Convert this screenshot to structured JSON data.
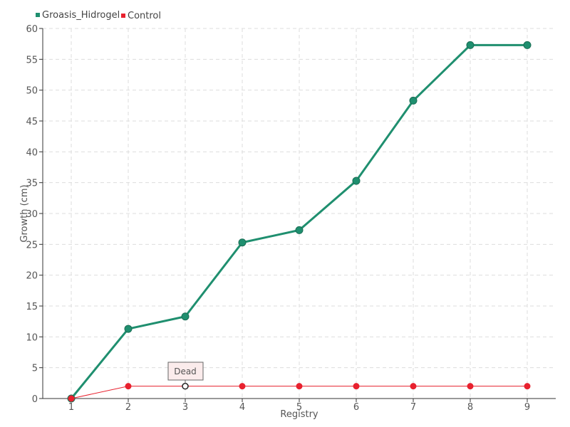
{
  "chart_data": {
    "type": "line",
    "title": "",
    "xlabel": "Registry",
    "ylabel": "Growth (cm)",
    "categories": [
      "1",
      "2",
      "3",
      "4",
      "5",
      "6",
      "7",
      "8",
      "9"
    ],
    "ylim": [
      0,
      60
    ],
    "yticks": [
      0,
      5,
      10,
      15,
      20,
      25,
      30,
      35,
      40,
      45,
      50,
      55,
      60
    ],
    "grid": true,
    "legend_position": "top-left",
    "series": [
      {
        "name": "Groasis_Hidrogel",
        "color": "#1f8f6f",
        "values": [
          0,
          11.3,
          13.3,
          25.3,
          27.3,
          35.3,
          48.3,
          57.3,
          57.3
        ]
      },
      {
        "name": "Control",
        "color": "#e8212e",
        "values": [
          0,
          2,
          2,
          2,
          2,
          2,
          2,
          2,
          2
        ]
      }
    ],
    "tooltip": {
      "text": "Dead",
      "series_index": 1,
      "point_index": 2
    }
  }
}
